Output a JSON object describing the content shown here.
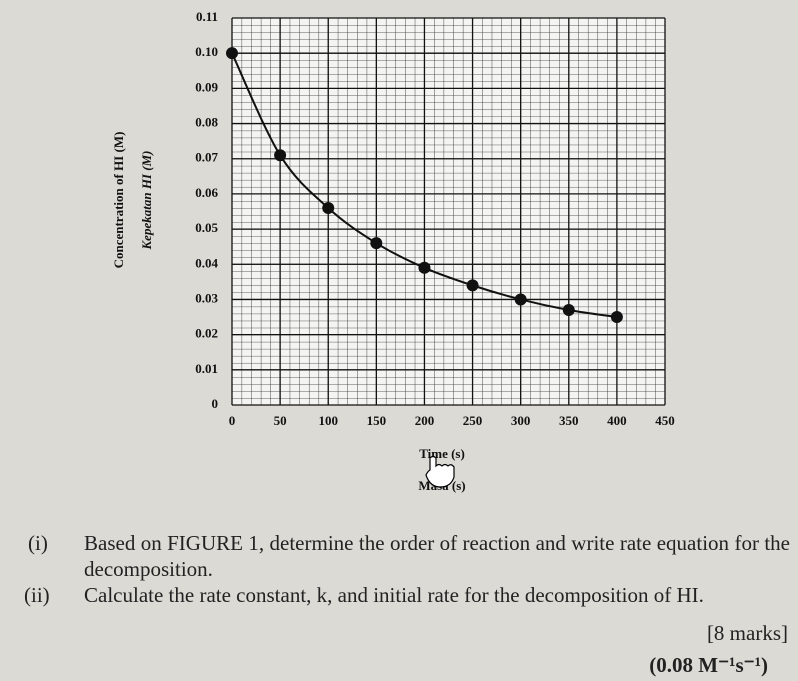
{
  "chart_data": {
    "type": "line",
    "ylabel": "Concentration of HI (M)",
    "ylabel2": "Kepekatan HI (M)",
    "xlabel": "Time (s)",
    "xlabel2": "Masa (s)",
    "x": [
      0,
      50,
      100,
      150,
      200,
      250,
      300,
      350,
      400
    ],
    "series": [
      {
        "color": "#111111",
        "values": [
          0.1,
          0.071,
          0.056,
          0.046,
          0.039,
          0.034,
          0.03,
          0.027,
          0.025
        ]
      }
    ],
    "xlim": [
      0,
      450
    ],
    "xticks": [
      0,
      50,
      100,
      150,
      200,
      250,
      300,
      350,
      400,
      450
    ],
    "ylim": [
      0,
      0.11
    ],
    "yticks": [
      0,
      0.01,
      0.02,
      0.03,
      0.04,
      0.05,
      0.06,
      0.07,
      0.08,
      0.09,
      {
        "value": 0.1,
        "label": "0.10"
      },
      0.11
    ],
    "grid": true
  },
  "questions": [
    {
      "number": "(i)",
      "text": "Based on FIGURE 1, determine the order of reaction and write rate equation for the decomposition."
    },
    {
      "number": "(ii)",
      "text": "Calculate the rate constant, k, and initial rate for the decomposition of HI."
    }
  ],
  "marks": "[8 marks]",
  "answer": "(0.08 M⁻¹s⁻¹)"
}
